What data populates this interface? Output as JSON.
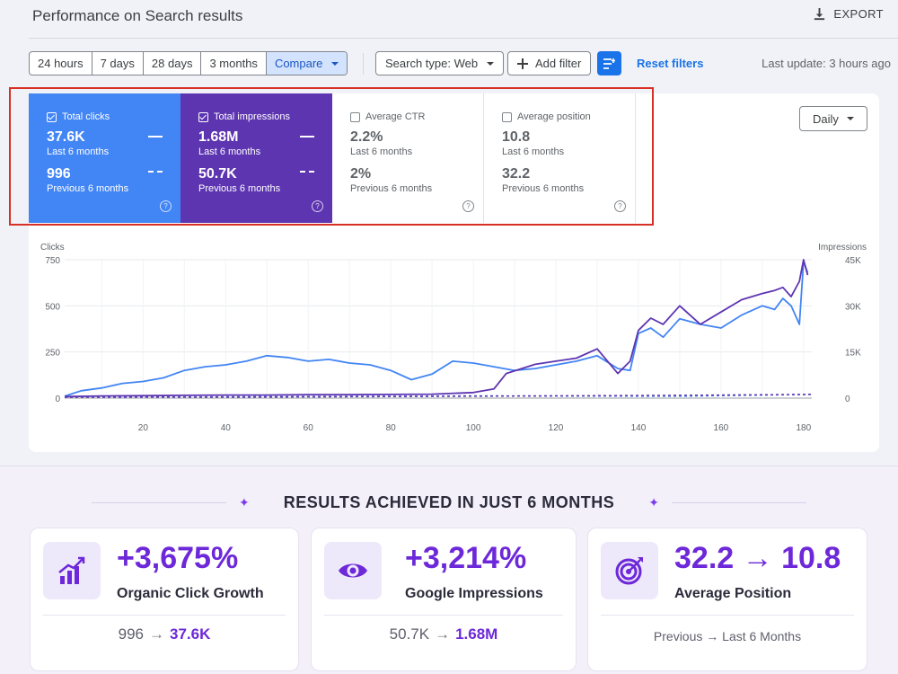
{
  "header": {
    "title": "Performance on Search results",
    "export_label": "EXPORT"
  },
  "toolbar": {
    "ranges": [
      "24 hours",
      "7 days",
      "28 days",
      "3 months"
    ],
    "compare_label": "Compare",
    "search_type": "Search type: Web",
    "add_filter": "Add filter",
    "reset_filters": "Reset filters",
    "last_update": "Last update: 3 hours ago"
  },
  "metrics": {
    "clicks": {
      "label": "Total clicks",
      "current": "37.6K",
      "current_period": "Last 6 months",
      "previous": "996",
      "previous_period": "Previous 6 months",
      "checked": true
    },
    "impressions": {
      "label": "Total impressions",
      "current": "1.68M",
      "current_period": "Last 6 months",
      "previous": "50.7K",
      "previous_period": "Previous 6 months",
      "checked": true
    },
    "ctr": {
      "label": "Average CTR",
      "current": "2.2%",
      "current_period": "Last 6 months",
      "previous": "2%",
      "previous_period": "Previous 6 months",
      "checked": false
    },
    "position": {
      "label": "Average position",
      "current": "10.8",
      "current_period": "Last 6 months",
      "previous": "32.2",
      "previous_period": "Previous 6 months",
      "checked": false
    },
    "help_glyph": "?"
  },
  "granularity": "Daily",
  "chart_data": {
    "type": "line",
    "ylabel": "Clicks",
    "y2label": "Impressions",
    "ylim": [
      0,
      750
    ],
    "y2lim": [
      0,
      45000
    ],
    "yticks": [
      "0",
      "250",
      "500",
      "750"
    ],
    "y2ticks": [
      "0",
      "15K",
      "30K",
      "45K"
    ],
    "xticks": [
      20,
      40,
      60,
      80,
      100,
      120,
      140,
      160,
      180
    ],
    "xlim": [
      1,
      182
    ],
    "grid": true,
    "colors": {
      "clicks": "#4285f4",
      "impressions": "#5e35b1"
    },
    "series": [
      {
        "key": "clicks",
        "x": [
          1,
          5,
          10,
          15,
          20,
          25,
          30,
          35,
          40,
          45,
          50,
          55,
          60,
          65,
          70,
          75,
          80,
          85,
          90,
          95,
          100,
          105,
          110,
          115,
          120,
          125,
          130,
          135,
          138,
          140,
          143,
          146,
          150,
          155,
          160,
          165,
          170,
          173,
          175,
          177,
          179,
          180,
          181
        ],
        "y": [
          10,
          40,
          55,
          80,
          90,
          110,
          150,
          170,
          180,
          200,
          230,
          220,
          200,
          210,
          190,
          180,
          150,
          100,
          130,
          200,
          190,
          170,
          150,
          160,
          180,
          200,
          230,
          160,
          150,
          350,
          380,
          330,
          430,
          400,
          380,
          450,
          500,
          480,
          540,
          500,
          400,
          740,
          680
        ]
      },
      {
        "key": "impressions",
        "x": [
          1,
          10,
          20,
          30,
          40,
          50,
          60,
          70,
          80,
          90,
          100,
          105,
          108,
          115,
          120,
          125,
          130,
          135,
          138,
          140,
          143,
          146,
          150,
          155,
          160,
          165,
          170,
          173,
          175,
          177,
          179,
          180,
          181
        ],
        "y": [
          500,
          700,
          800,
          900,
          1000,
          1000,
          1100,
          1100,
          1200,
          1300,
          1800,
          3000,
          8000,
          11000,
          12000,
          13000,
          16000,
          8000,
          12000,
          22000,
          26000,
          24000,
          30000,
          24000,
          28000,
          32000,
          34000,
          35000,
          36000,
          33000,
          38000,
          45000,
          40000
        ]
      },
      {
        "key": "clicks-previous",
        "x": [
          1,
          50,
          100,
          150,
          182
        ],
        "y": [
          5,
          8,
          12,
          10,
          20
        ]
      },
      {
        "key": "impressions-previous",
        "x": [
          1,
          50,
          100,
          150,
          182
        ],
        "y": [
          300,
          350,
          600,
          900,
          1200
        ]
      }
    ]
  },
  "results": {
    "heading": "RESULTS ACHIEVED IN JUST 6 MONTHS",
    "star": "✦",
    "cards": [
      {
        "icon": "growth-chart-icon",
        "big": "+3,675%",
        "label": "Organic Click Growth",
        "from": "996",
        "to": "37.6K"
      },
      {
        "icon": "eye-icon",
        "big": "+3,214%",
        "label": "Google Impressions",
        "from": "50.7K",
        "to": "1.68M"
      },
      {
        "icon": "target-icon",
        "big": "32.2 → 10.8",
        "label": "Average Position",
        "foot": "Previous → Last 6 Months"
      }
    ],
    "arrow": "→"
  }
}
